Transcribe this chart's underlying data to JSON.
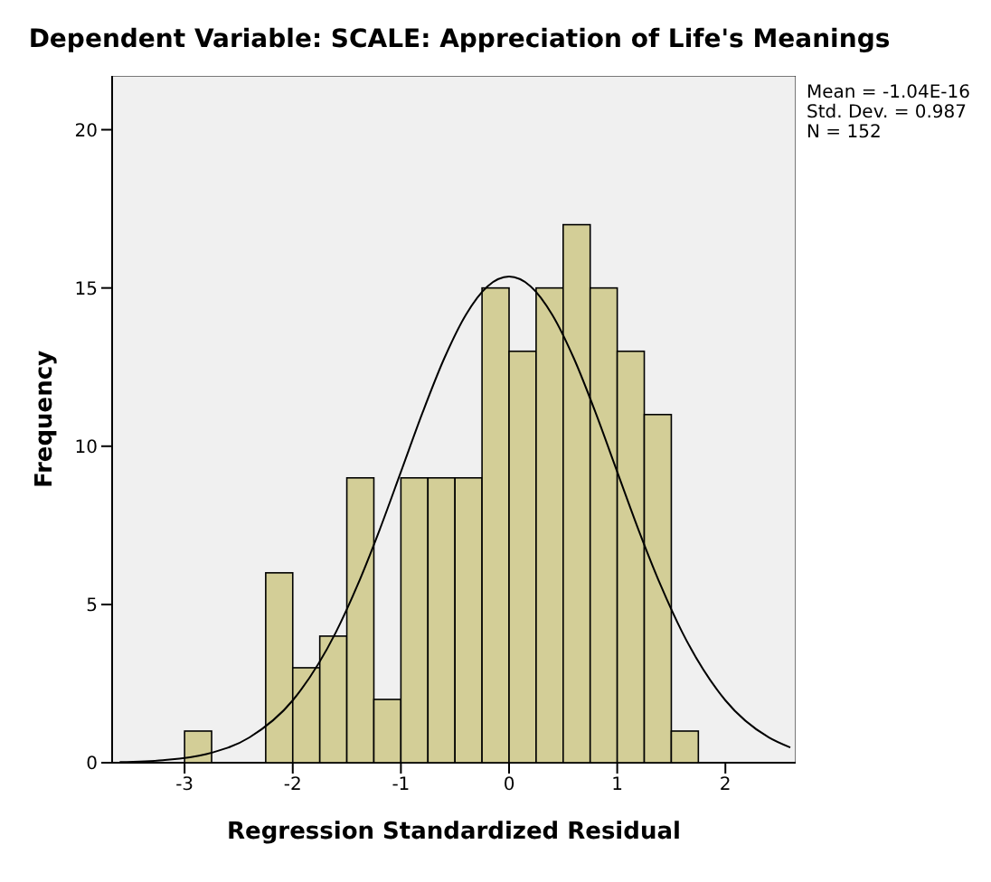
{
  "chart_data": {
    "type": "histogram",
    "title": "Dependent Variable: SCALE: Appreciation of Life's Meanings",
    "xlabel": "Regression Standardized Residual",
    "ylabel": "Frequency",
    "annotations": [
      "Mean = -1.04E-16",
      "Std. Dev. = 0.987",
      "N = 152"
    ],
    "bins": [
      -3,
      -2.75,
      -2.5,
      -2.25,
      -2,
      -1.75,
      -1.5,
      -1.25,
      -1,
      -0.75,
      -0.5,
      -0.25,
      0,
      0.25,
      0.5,
      0.75,
      1,
      1.25,
      1.5,
      1.75
    ],
    "values": [
      1,
      0,
      0,
      6,
      3,
      4,
      9,
      2,
      9,
      9,
      9,
      15,
      13,
      15,
      17,
      15,
      13,
      11,
      1
    ],
    "color": "#d3ce97",
    "series": [
      {
        "type": "line",
        "color": "#000000",
        "x": [
          -3.6,
          -3.2,
          -2.8,
          -2.4,
          -2.0,
          -1.6,
          -1.4,
          -1.2,
          -1.0,
          -0.8,
          -0.6,
          -0.4,
          -0.2,
          0,
          0.2,
          0.4,
          0.6,
          0.8,
          1.0,
          1.2,
          1.4,
          1.6,
          2.0,
          2.4,
          2.6
        ],
        "values": [
          0.02,
          0.08,
          0.27,
          0.8,
          1.97,
          4.13,
          5.62,
          7.33,
          9.19,
          11.06,
          12.77,
          14.15,
          15.05,
          15.36,
          15.05,
          14.15,
          12.77,
          11.06,
          9.19,
          7.33,
          5.62,
          4.13,
          1.97,
          0.8,
          0.48
        ]
      }
    ],
    "xlim": [
      -3.67,
      2.65
    ],
    "xticks": [
      -3,
      -2,
      -1,
      0,
      1,
      2
    ],
    "ylim": [
      0,
      21.7
    ],
    "yticks": [
      0,
      5,
      10,
      15,
      20
    ],
    "grid": false,
    "legend": false
  }
}
